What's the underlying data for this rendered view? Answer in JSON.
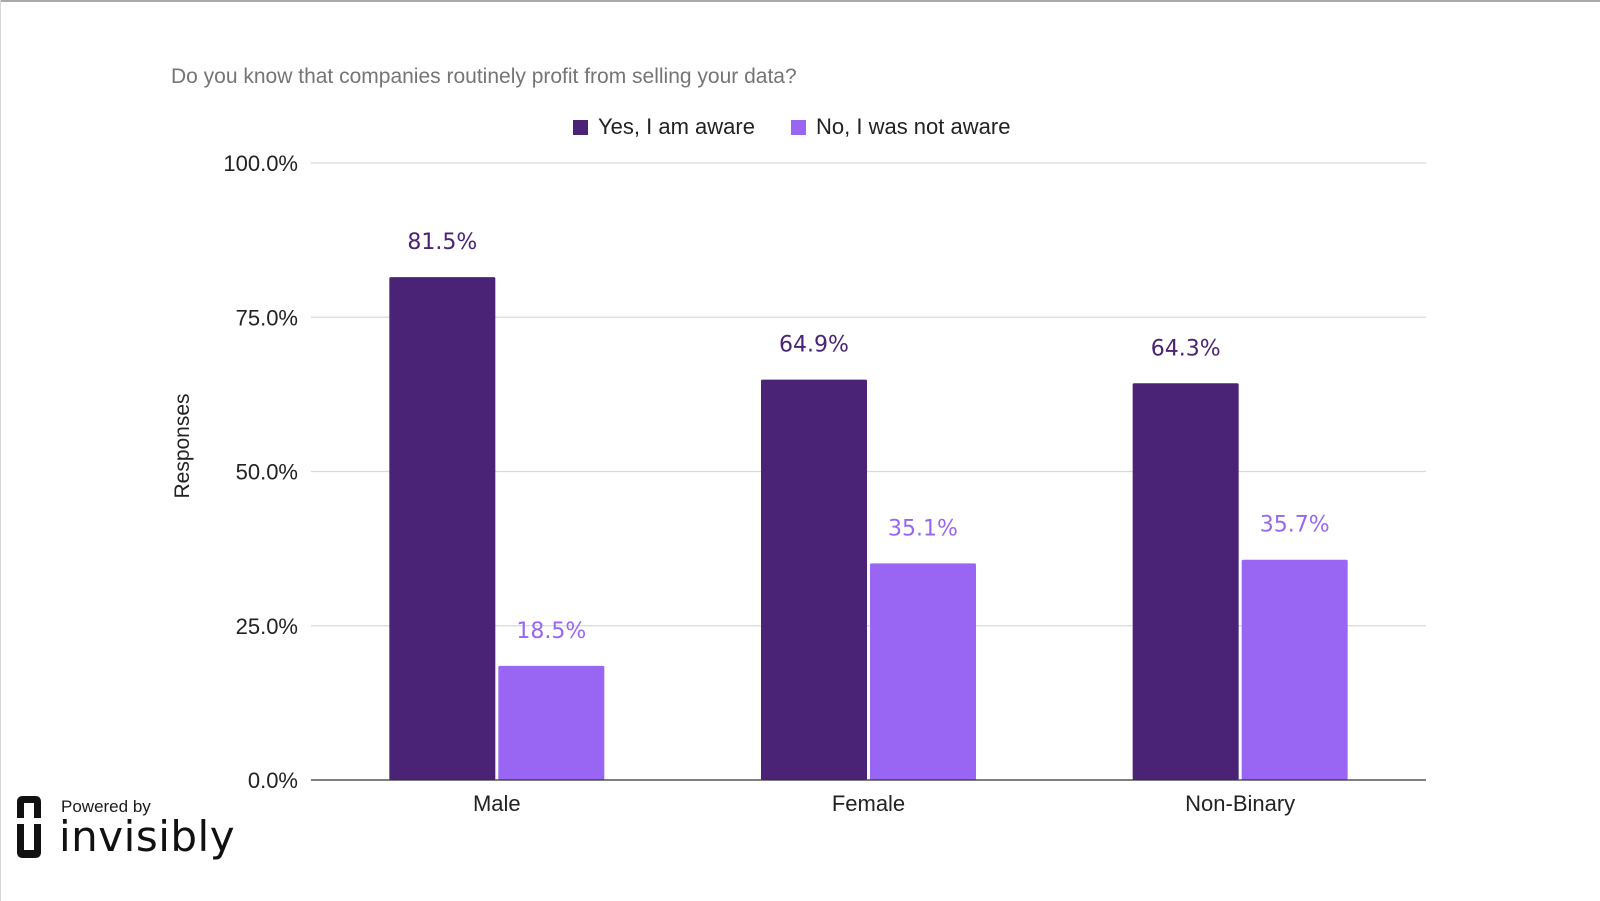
{
  "chart_data": {
    "type": "bar",
    "title": "Do you know that companies routinely profit from selling your data?",
    "xlabel": "",
    "ylabel": "Responses",
    "categories": [
      "Male",
      "Female",
      "Non-Binary"
    ],
    "series": [
      {
        "name": "Yes, I am aware",
        "color": "#4a2377",
        "label_color": "#4a2377",
        "values": [
          81.5,
          64.9,
          64.3
        ],
        "labels": [
          "81.5%",
          "64.9%",
          "64.3%"
        ]
      },
      {
        "name": "No, I was not aware",
        "color": "#9966f4",
        "label_color": "#9966f4",
        "values": [
          18.5,
          35.1,
          35.7
        ],
        "labels": [
          "18.5%",
          "35.1%",
          "35.7%"
        ]
      }
    ],
    "ylim": [
      0,
      100
    ],
    "yticks": [
      0,
      25,
      50,
      75,
      100
    ],
    "ytick_labels": [
      "0.0%",
      "25.0%",
      "50.0%",
      "75.0%",
      "100.0%"
    ],
    "grid": true,
    "legend_position": "top-center"
  },
  "branding": {
    "powered_by": "Powered by",
    "brand_name": "invisibly",
    "logo_icon": "invisibly-logo-icon"
  }
}
